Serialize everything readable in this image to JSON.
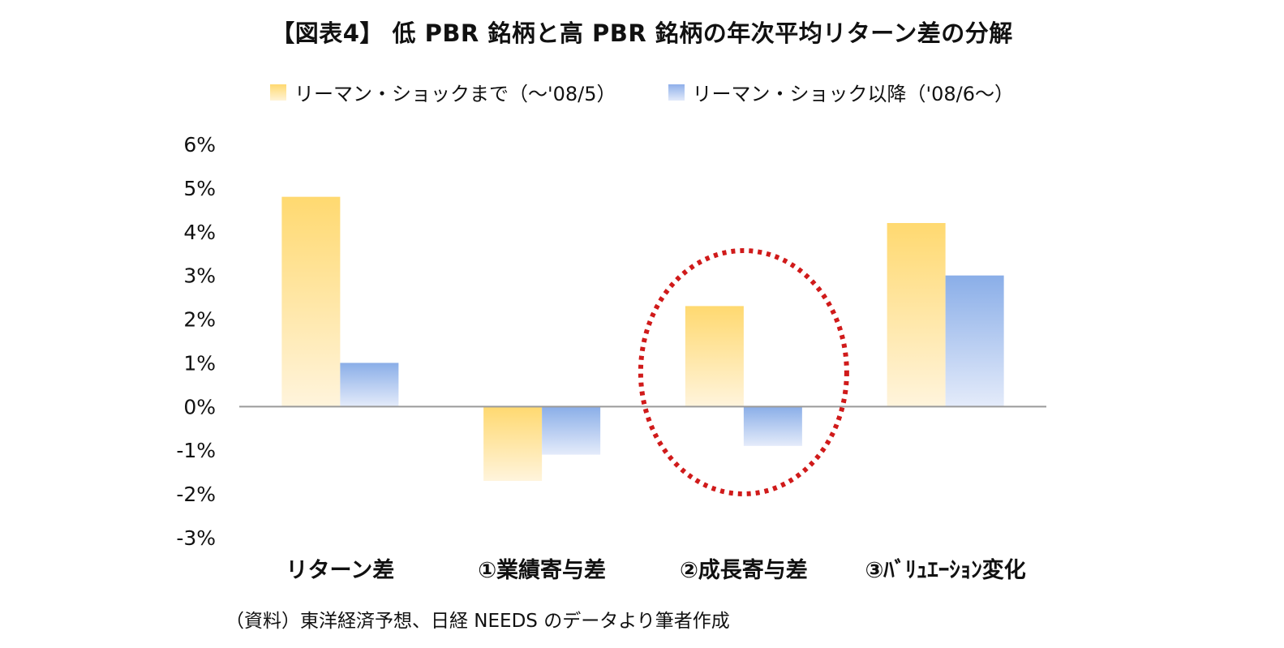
{
  "title": "【図表4】 低 PBR 銘柄と高 PBR 銘柄の年次平均リターン差の分解",
  "source": "（資料）東洋経済予想、日経 NEEDS のデータより筆者作成",
  "colors": {
    "series1_top": "#ffd970",
    "series1_bottom": "#fff4dc",
    "series2_top": "#8aaee8",
    "series2_bottom": "#e4ebfa",
    "axis": "#9a9a9a",
    "annotation": "#d01a1a"
  },
  "chart_data": {
    "type": "bar",
    "categories": [
      "リターン差",
      "①業績寄与差",
      "②成長寄与差",
      "③ﾊﾞﾘｭｴｰｼｮﾝ変化"
    ],
    "series": [
      {
        "name": "リーマン・ショックまで（～'08/5）",
        "values": [
          0.048,
          -0.017,
          0.023,
          0.042
        ]
      },
      {
        "name": "リーマン・ショック以降（'08/6～）",
        "values": [
          0.01,
          -0.011,
          -0.009,
          0.03
        ]
      }
    ],
    "ylim": [
      -0.03,
      0.06
    ],
    "yticks": [
      "6%",
      "5%",
      "4%",
      "3%",
      "2%",
      "1%",
      "0%",
      "-1%",
      "-2%",
      "-3%"
    ],
    "ytick_values": [
      0.06,
      0.05,
      0.04,
      0.03,
      0.02,
      0.01,
      0,
      -0.01,
      -0.02,
      -0.03
    ],
    "legend_position": "top",
    "grid": false,
    "annotation": {
      "type": "dotted-ellipse",
      "target_category": "②成長寄与差"
    }
  }
}
